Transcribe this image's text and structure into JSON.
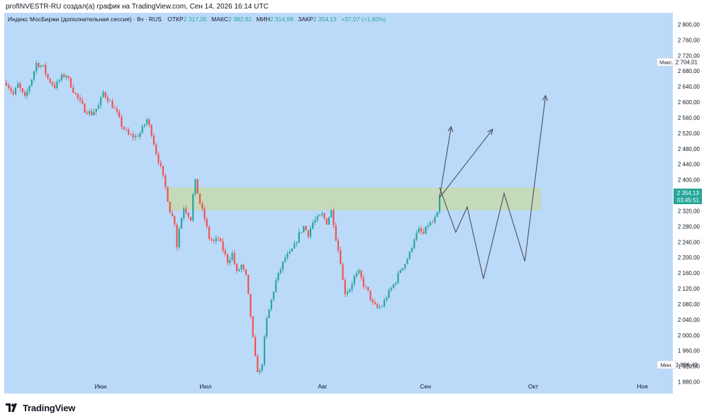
{
  "caption": "profINVESTR-RU создал(а) график на TradingView.com, Сен 14, 2026 16:14 UTC",
  "legend": {
    "symbol": "Индекс МосБиржи (дополнительная сессия) · 8ч · RUS",
    "open_label": "ОТКР",
    "open_value": "2 317,05",
    "high_label": "МАКС",
    "high_value": "2 382,82",
    "low_label": "МИН",
    "low_value": "2 314,99",
    "close_label": "ЗАКР",
    "close_value": "2 354,13",
    "change": "+37,07 (+1,60%)"
  },
  "badges": {
    "max_label": "Макс.",
    "max_value": "2 704,01",
    "min_label": "Мин.",
    "min_value": "1 896,43",
    "price_value": "2 354,13",
    "countdown": "03:45:51"
  },
  "brand": {
    "name": "TradingView"
  },
  "colors": {
    "background": "#bbdafa",
    "up": "#26a69a",
    "down": "#ef5350",
    "zone": "#c5d9b0",
    "projection": "#4a4f5c",
    "badge": "#26a69a"
  },
  "chart_data": {
    "type": "candlestick",
    "ylim": [
      1850,
      2830
    ],
    "y_ticks": [
      "2 800,00",
      "2 760,00",
      "2 720,00",
      "2 680,00",
      "2 640,00",
      "2 600,00",
      "2 560,00",
      "2 520,00",
      "2 480,00",
      "2 440,00",
      "2 400,00",
      "2 360,00",
      "2 320,00",
      "2 280,00",
      "2 240,00",
      "2 200,00",
      "2 160,00",
      "2 120,00",
      "2 080,00",
      "2 040,00",
      "2 000,00",
      "1 960,00",
      "1 920,00",
      "1 880,00"
    ],
    "x_ticks": [
      "Июн",
      "Июл",
      "Авг",
      "Сен",
      "Окт",
      "Ноя"
    ],
    "price_path": [
      [
        0,
        2650
      ],
      [
        3,
        2620
      ],
      [
        5,
        2645
      ],
      [
        8,
        2610
      ],
      [
        11,
        2660
      ],
      [
        13,
        2700
      ],
      [
        16,
        2690
      ],
      [
        18,
        2660
      ],
      [
        21,
        2640
      ],
      [
        24,
        2665
      ],
      [
        26,
        2670
      ],
      [
        29,
        2630
      ],
      [
        32,
        2600
      ],
      [
        34,
        2580
      ],
      [
        37,
        2570
      ],
      [
        40,
        2590
      ],
      [
        42,
        2625
      ],
      [
        45,
        2600
      ],
      [
        48,
        2570
      ],
      [
        50,
        2540
      ],
      [
        53,
        2515
      ],
      [
        56,
        2510
      ],
      [
        58,
        2520
      ],
      [
        61,
        2555
      ],
      [
        63,
        2520
      ],
      [
        65,
        2470
      ],
      [
        67,
        2430
      ],
      [
        69,
        2380
      ],
      [
        71,
        2320
      ],
      [
        73,
        2290
      ],
      [
        74,
        2230
      ],
      [
        75,
        2275
      ],
      [
        77,
        2330
      ],
      [
        78,
        2320
      ],
      [
        80,
        2300
      ],
      [
        81,
        2360
      ],
      [
        82,
        2395
      ],
      [
        84,
        2340
      ],
      [
        86,
        2300
      ],
      [
        88,
        2250
      ],
      [
        90,
        2240
      ],
      [
        92,
        2250
      ],
      [
        94,
        2220
      ],
      [
        96,
        2190
      ],
      [
        98,
        2210
      ],
      [
        100,
        2160
      ],
      [
        102,
        2180
      ],
      [
        104,
        2150
      ],
      [
        105,
        2100
      ],
      [
        106,
        2050
      ],
      [
        107,
        1990
      ],
      [
        108,
        1940
      ],
      [
        109,
        1910
      ],
      [
        110,
        1905
      ],
      [
        111,
        1930
      ],
      [
        112,
        1990
      ],
      [
        113,
        2040
      ],
      [
        115,
        2090
      ],
      [
        117,
        2140
      ],
      [
        119,
        2170
      ],
      [
        121,
        2200
      ],
      [
        123,
        2210
      ],
      [
        125,
        2230
      ],
      [
        127,
        2260
      ],
      [
        129,
        2280
      ],
      [
        131,
        2260
      ],
      [
        133,
        2290
      ],
      [
        135,
        2300
      ],
      [
        137,
        2310
      ],
      [
        139,
        2290
      ],
      [
        141,
        2320
      ],
      [
        142,
        2290
      ],
      [
        143,
        2250
      ],
      [
        145,
        2190
      ],
      [
        146,
        2140
      ],
      [
        147,
        2110
      ],
      [
        149,
        2120
      ],
      [
        151,
        2150
      ],
      [
        153,
        2160
      ],
      [
        155,
        2130
      ],
      [
        157,
        2110
      ],
      [
        159,
        2080
      ],
      [
        161,
        2070
      ],
      [
        163,
        2075
      ],
      [
        165,
        2100
      ],
      [
        167,
        2120
      ],
      [
        169,
        2140
      ],
      [
        171,
        2170
      ],
      [
        173,
        2185
      ],
      [
        175,
        2210
      ],
      [
        177,
        2250
      ],
      [
        179,
        2270
      ],
      [
        181,
        2260
      ],
      [
        183,
        2285
      ],
      [
        185,
        2290
      ],
      [
        187,
        2310
      ],
      [
        188,
        2354
      ]
    ],
    "bars_count": 189,
    "zone": {
      "x_from": 70,
      "x_to": 232,
      "y_low": 2322,
      "y_high": 2380
    },
    "projections": [
      [
        [
          188,
          2354
        ],
        [
          193,
          2537
        ]
      ],
      [
        [
          188,
          2354
        ],
        [
          211,
          2530
        ]
      ],
      [
        [
          188,
          2380
        ],
        [
          195,
          2265
        ],
        [
          200,
          2330
        ],
        [
          207,
          2145
        ],
        [
          216,
          2365
        ],
        [
          225,
          2190
        ],
        [
          234,
          2617
        ]
      ]
    ]
  }
}
